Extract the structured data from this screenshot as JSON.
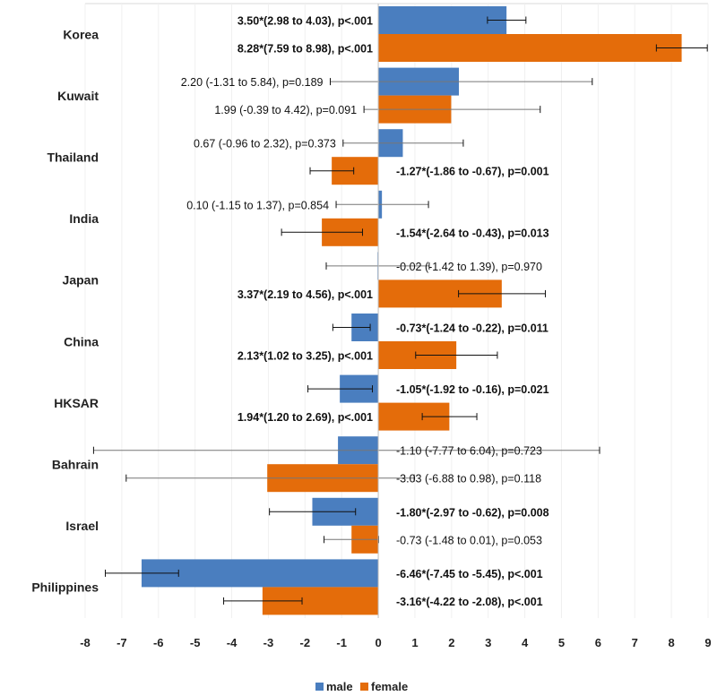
{
  "chart_data": {
    "type": "bar",
    "orientation": "horizontal",
    "title": "",
    "xlabel": "",
    "ylabel": "",
    "xlim": [
      -8,
      9
    ],
    "xticks": [
      "-8",
      "-7",
      "-6",
      "-5",
      "-4",
      "-3",
      "-2",
      "-1",
      "0",
      "1",
      "2",
      "3",
      "4",
      "5",
      "6",
      "7",
      "8",
      "9"
    ],
    "grid": true,
    "legend": {
      "position": "bottom",
      "entries": [
        "male",
        "female"
      ]
    },
    "colors": {
      "male": "#4a7ebf",
      "female": "#e46c0a"
    },
    "categories": [
      "Korea",
      "Kuwait",
      "Thailand",
      "India",
      "Japan",
      "China",
      "HKSAR",
      "Bahrain",
      "Israel",
      "Philippines"
    ],
    "series": [
      {
        "name": "male",
        "values": [
          3.5,
          2.2,
          0.67,
          0.1,
          -0.02,
          -0.73,
          -1.05,
          -1.1,
          -1.8,
          -6.46
        ],
        "ci_low": [
          2.98,
          -1.31,
          -0.96,
          -1.15,
          -1.42,
          -1.24,
          -1.92,
          -7.77,
          -2.97,
          -7.45
        ],
        "ci_high": [
          4.03,
          5.84,
          2.32,
          1.37,
          1.39,
          -0.22,
          -0.16,
          6.04,
          -0.62,
          -5.45
        ],
        "significant": [
          true,
          false,
          false,
          false,
          false,
          true,
          true,
          false,
          true,
          true
        ],
        "labels": [
          "3.50*(2.98 to 4.03), p<.001",
          "2.20 (-1.31 to 5.84), p=0.189",
          "0.67 (-0.96 to 2.32), p=0.373",
          "0.10 (-1.15 to 1.37), p=0.854",
          "-0.02 (-1.42 to 1.39), p=0.970",
          "-0.73*(-1.24 to -0.22), p=0.011",
          "-1.05*(-1.92 to -0.16), p=0.021",
          "-1.10 (-7.77 to 6.04), p=0.723",
          "-1.80*(-2.97 to -0.62), p=0.008",
          "-6.46*(-7.45 to -5.45), p<.001"
        ]
      },
      {
        "name": "female",
        "values": [
          8.28,
          1.99,
          -1.27,
          -1.54,
          3.37,
          2.13,
          1.94,
          -3.03,
          -0.73,
          -3.16
        ],
        "ci_low": [
          7.59,
          -0.39,
          -1.86,
          -2.64,
          2.19,
          1.02,
          1.2,
          -6.88,
          -1.48,
          -4.22
        ],
        "ci_high": [
          8.98,
          4.42,
          -0.67,
          -0.43,
          4.56,
          3.25,
          2.69,
          0.98,
          0.01,
          -2.08
        ],
        "significant": [
          true,
          false,
          true,
          true,
          true,
          true,
          true,
          false,
          false,
          true
        ],
        "labels": [
          "8.28*(7.59 to 8.98), p<.001",
          "1.99 (-0.39 to 4.42), p=0.091",
          "-1.27*(-1.86 to -0.67), p=0.001",
          "-1.54*(-2.64 to -0.43), p=0.013",
          "3.37*(2.19 to 4.56), p<.001",
          "2.13*(1.02 to 3.25), p<.001",
          "1.94*(1.20 to 2.69), p<.001",
          "-3.03 (-6.88 to 0.98), p=0.118",
          "-0.73 (-1.48 to 0.01), p=0.053",
          "-3.16*(-4.22 to -2.08), p<.001"
        ]
      }
    ]
  }
}
